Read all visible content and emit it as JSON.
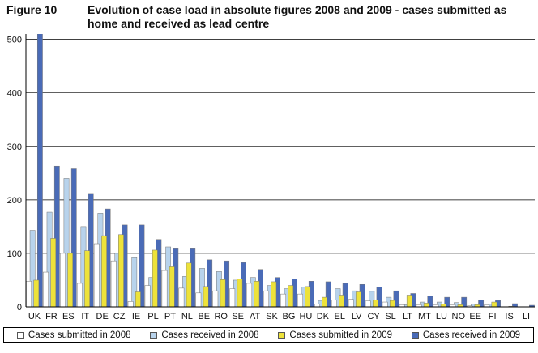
{
  "figure_label": "Figure 10",
  "figure_title": "Evolution of case load in absolute figures 2008 and 2009 - cases submitted as home and received as lead centre",
  "chart_data": {
    "type": "bar",
    "categories": [
      "UK",
      "FR",
      "ES",
      "IT",
      "DE",
      "CZ",
      "IE",
      "PL",
      "PT",
      "NL",
      "BE",
      "RO",
      "SE",
      "AT",
      "SK",
      "BG",
      "HU",
      "DK",
      "EL",
      "LV",
      "CY",
      "SL",
      "LT",
      "MT",
      "LU",
      "NO",
      "EE",
      "FI",
      "IS",
      "LI"
    ],
    "series": [
      {
        "name": "Cases submitted in 2008",
        "color": "#ffffff",
        "values": [
          48,
          65,
          100,
          44,
          118,
          86,
          10,
          40,
          68,
          35,
          26,
          30,
          34,
          44,
          30,
          24,
          24,
          5,
          13,
          14,
          11,
          9,
          4,
          4,
          4,
          4,
          2,
          4,
          0,
          0
        ]
      },
      {
        "name": "Cases received in 2008",
        "color": "#b8d3ec",
        "values": [
          143,
          177,
          240,
          150,
          175,
          100,
          92,
          55,
          112,
          57,
          72,
          66,
          50,
          55,
          40,
          34,
          37,
          12,
          34,
          30,
          29,
          18,
          4,
          9,
          9,
          8,
          5,
          5,
          0,
          0
        ]
      },
      {
        "name": "Cases submitted in 2009",
        "color": "#ede23a",
        "values": [
          50,
          128,
          100,
          105,
          133,
          135,
          28,
          106,
          75,
          82,
          38,
          51,
          52,
          48,
          47,
          40,
          38,
          18,
          22,
          28,
          13,
          12,
          22,
          7,
          5,
          4,
          4,
          9,
          1,
          0
        ]
      },
      {
        "name": "Cases received in 2009",
        "color": "#4a6bb7",
        "values": [
          512,
          263,
          258,
          212,
          183,
          153,
          153,
          126,
          110,
          110,
          88,
          86,
          83,
          70,
          55,
          52,
          48,
          47,
          44,
          42,
          37,
          30,
          25,
          20,
          18,
          18,
          13,
          12,
          6,
          3
        ]
      }
    ],
    "ylim": [
      0,
      510
    ],
    "yticks": [
      0,
      100,
      200,
      300,
      400,
      500
    ],
    "grid": true,
    "legend_position": "bottom"
  }
}
